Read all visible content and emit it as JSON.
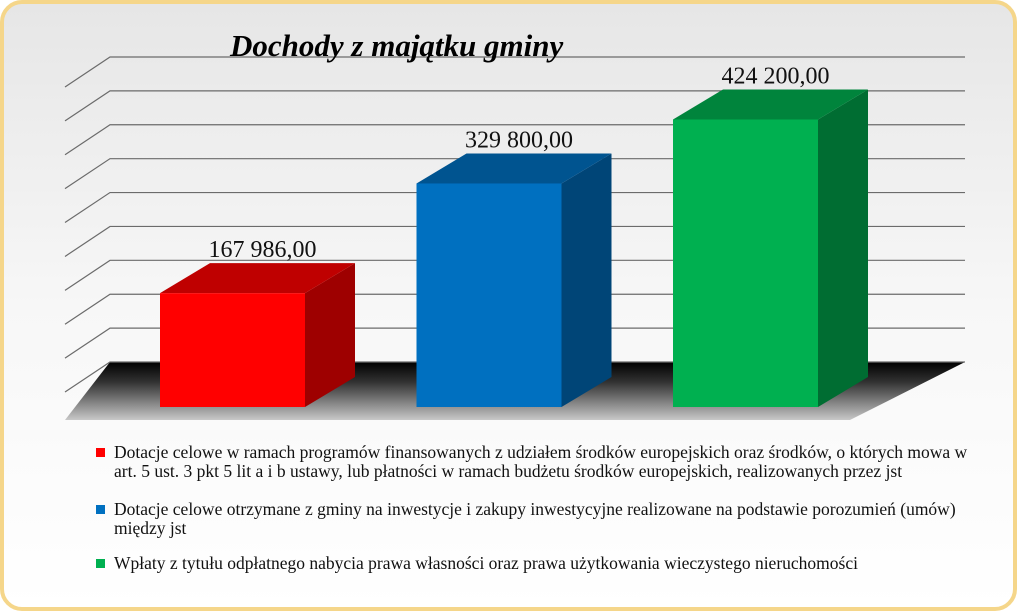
{
  "chart_data": {
    "type": "bar3d",
    "title": "Dochody z majątku gminy",
    "series": [
      {
        "name": "Dotacje celowe w ramach programów finansowanych z udziałem środków europejskich oraz środków, o których mowa w art. 5 ust. 3 pkt 5 lit a i b ustawy, lub płatności w ramach budżetu środków europejskich, realizowanych przez jst",
        "color": "#ff0000",
        "values": [
          167986.0
        ],
        "value_labels": [
          "167 986,00"
        ]
      },
      {
        "name": "Dotacje celowe otrzymane z gminy na inwestycje i zakupy inwestycyjne realizowane na podstawie porozumień (umów) między jst",
        "color": "#0070c0",
        "values": [
          329800.0
        ],
        "value_labels": [
          "329 800,00"
        ]
      },
      {
        "name": "Wpłaty z tytułu odpłatnego nabycia prawa własności oraz prawa użytkowania wieczystego nieruchomości",
        "color": "#00b050",
        "values": [
          424200.0
        ],
        "value_labels": [
          "424 200,00"
        ]
      }
    ],
    "ylim": [
      0,
      450000
    ],
    "yticks": [
      0,
      50000,
      100000,
      150000,
      200000,
      250000,
      300000,
      350000,
      400000,
      450000
    ],
    "grid": true
  }
}
